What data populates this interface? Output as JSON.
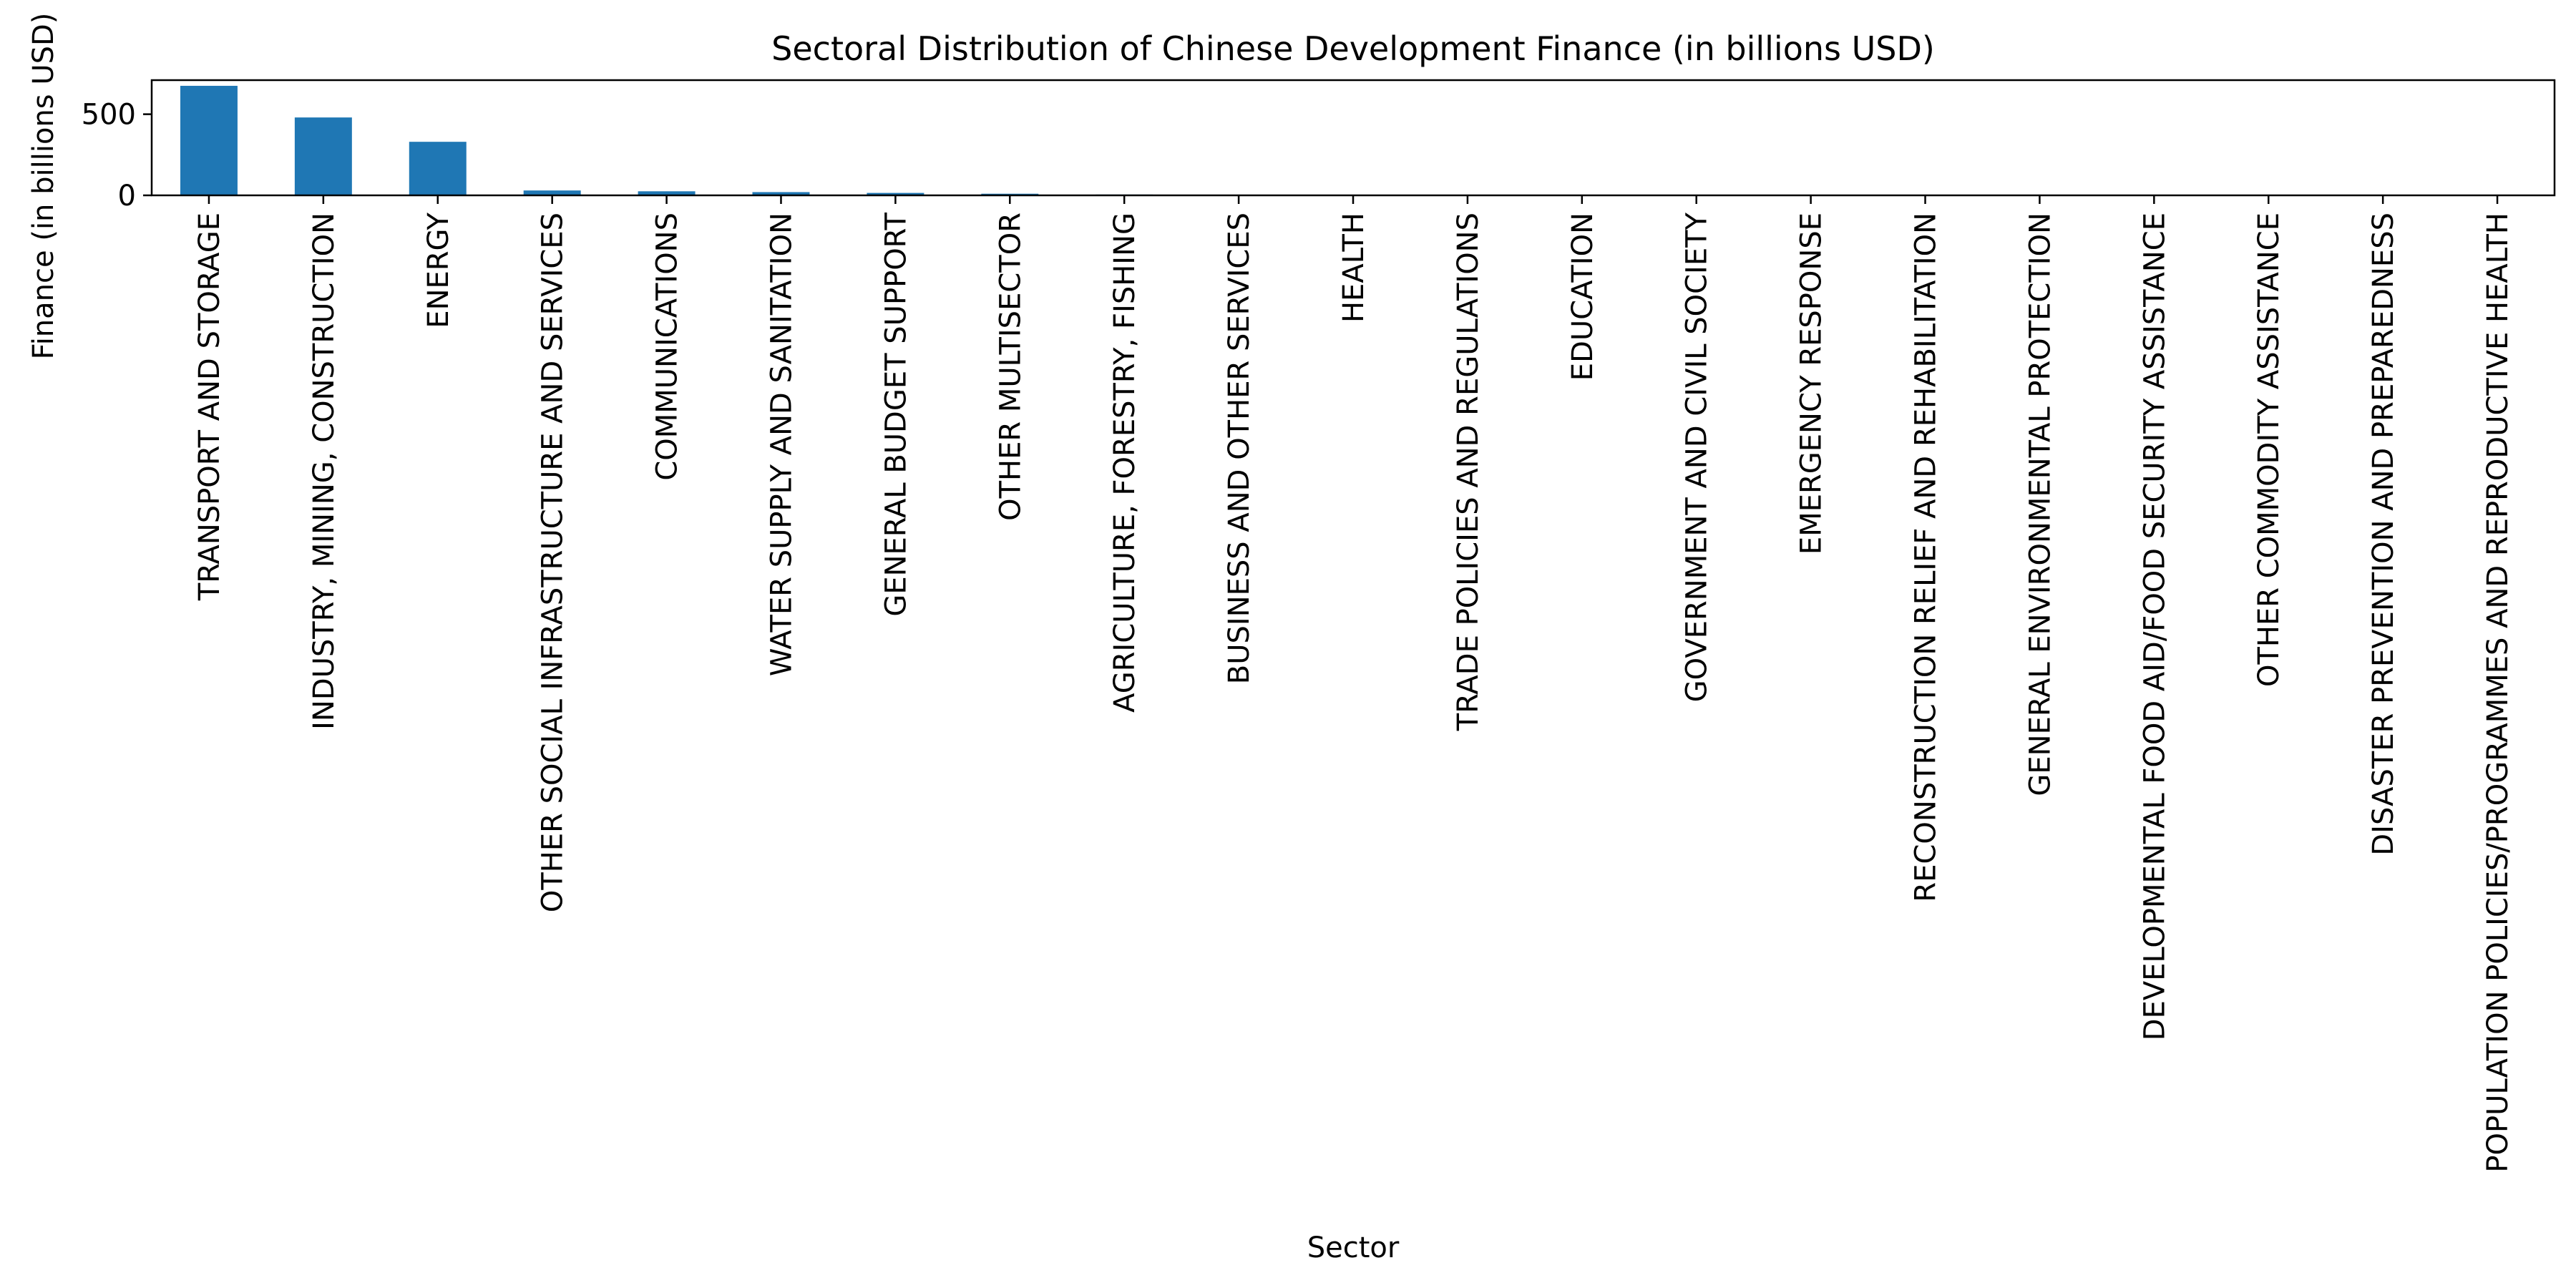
{
  "chart_data": {
    "type": "bar",
    "title": "Sectoral Distribution of Chinese Development Finance (in billions USD)",
    "xlabel": "Sector",
    "ylabel": "Finance (in billions USD)",
    "ylim": [
      0,
      710
    ],
    "yticks": [
      0,
      500
    ],
    "grid": false,
    "legend": "none",
    "bar_color": "#1f77b4",
    "categories": [
      "TRANSPORT AND STORAGE",
      "INDUSTRY, MINING, CONSTRUCTION",
      "ENERGY",
      "OTHER SOCIAL INFRASTRUCTURE AND SERVICES",
      "COMMUNICATIONS",
      "WATER SUPPLY AND SANITATION",
      "GENERAL BUDGET SUPPORT",
      "OTHER MULTISECTOR",
      "AGRICULTURE, FORESTRY, FISHING",
      "BUSINESS AND OTHER SERVICES",
      "HEALTH",
      "TRADE POLICIES AND REGULATIONS",
      "EDUCATION",
      "GOVERNMENT AND CIVIL SOCIETY",
      "EMERGENCY RESPONSE",
      "RECONSTRUCTION RELIEF AND REHABILITATION",
      "GENERAL ENVIRONMENTAL PROTECTION",
      "DEVELOPMENTAL FOOD AID/FOOD SECURITY ASSISTANCE",
      "OTHER COMMODITY ASSISTANCE",
      "DISASTER PREVENTION AND PREPAREDNESS",
      "POPULATION POLICIES/PROGRAMMES AND REPRODUCTIVE HEALTH"
    ],
    "values": [
      675,
      480,
      330,
      30,
      25,
      20,
      15,
      10,
      5,
      4,
      2,
      1.5,
      1,
      1,
      0.8,
      0.5,
      0.4,
      0.3,
      0.2,
      0.1,
      0.05
    ]
  }
}
